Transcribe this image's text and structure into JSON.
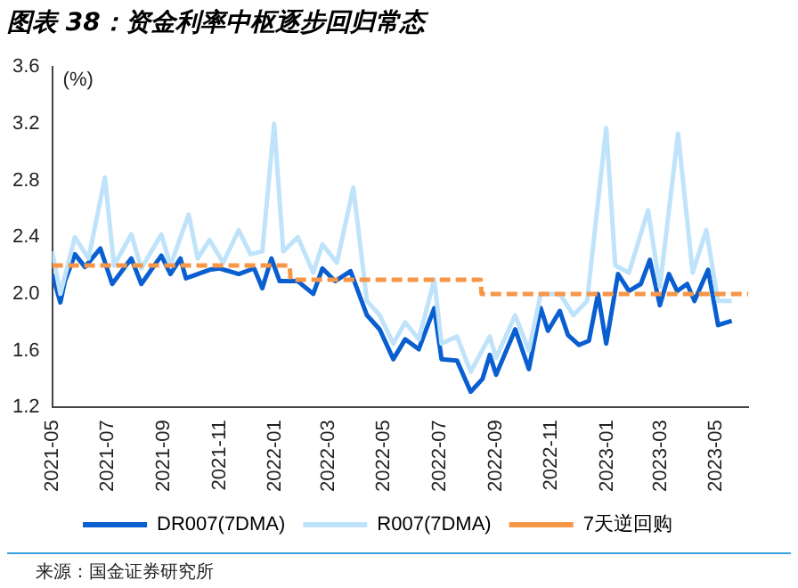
{
  "chart_data": {
    "type": "line",
    "title": "图表 38：资金利率中枢逐步回归常态",
    "ylabel": "(%)",
    "annotations": [
      "来源：国金证券研究所"
    ],
    "xlim": [
      "2021-05-01",
      "2023-06-05"
    ],
    "xticks": [
      "2021-05",
      "2021-07",
      "2021-09",
      "2021-11",
      "2022-01",
      "2022-03",
      "2022-05",
      "2022-07",
      "2022-09",
      "2022-11",
      "2023-01",
      "2023-03",
      "2023-05"
    ],
    "ylim": [
      1.2,
      3.6
    ],
    "yticks": [
      1.2,
      1.6,
      {
        "value": 2,
        "label": "2.0"
      },
      2.4,
      2.8,
      3.2,
      3.6
    ],
    "grid": false,
    "legend": "bottom",
    "marker": "none",
    "series": [
      {
        "name": "DR007(7DMA)",
        "color": "#0a5fd0",
        "line_style": "solid",
        "x": [
          "2021-05-01",
          "2021-05-10",
          "2021-05-15",
          "2021-05-26",
          "2021-06-06",
          "2021-06-23",
          "2021-07-06",
          "2021-07-27",
          "2021-08-07",
          "2021-08-29",
          "2021-09-08",
          "2021-09-19",
          "2021-09-25",
          "2021-10-21",
          "2021-11-01",
          "2021-11-22",
          "2021-12-09",
          "2021-12-18",
          "2021-12-28",
          "2022-01-06",
          "2022-01-26",
          "2022-02-12",
          "2022-02-22",
          "2022-03-08",
          "2022-03-25",
          "2022-04-12",
          "2022-04-26",
          "2022-05-11",
          "2022-05-24",
          "2022-06-08",
          "2022-06-25",
          "2022-07-03",
          "2022-07-20",
          "2022-08-04",
          "2022-08-17",
          "2022-08-25",
          "2022-09-01",
          "2022-09-22",
          "2022-10-07",
          "2022-10-20",
          "2022-10-28",
          "2022-11-10",
          "2022-11-19",
          "2022-12-01",
          "2022-12-12",
          "2022-12-22",
          "2022-12-31",
          "2023-01-13",
          "2023-01-25",
          "2023-02-07",
          "2023-02-17",
          "2023-02-28",
          "2023-03-10",
          "2023-03-19",
          "2023-03-30",
          "2023-04-07",
          "2023-04-22",
          "2023-05-03",
          "2023-05-18"
        ],
        "values": [
          2.14,
          1.94,
          2.09,
          2.28,
          2.19,
          2.32,
          2.07,
          2.25,
          2.07,
          2.27,
          2.14,
          2.25,
          2.11,
          2.17,
          2.18,
          2.14,
          2.18,
          2.04,
          2.25,
          2.09,
          2.09,
          2.0,
          2.18,
          2.09,
          2.16,
          1.85,
          1.75,
          1.54,
          1.68,
          1.61,
          1.9,
          1.54,
          1.53,
          1.31,
          1.4,
          1.57,
          1.43,
          1.75,
          1.47,
          1.9,
          1.74,
          1.88,
          1.71,
          1.64,
          1.67,
          2.0,
          1.65,
          2.14,
          2.02,
          2.07,
          2.24,
          1.92,
          2.14,
          2.02,
          2.07,
          1.95,
          2.17,
          1.78,
          1.81
        ]
      },
      {
        "name": "R007(7DMA)",
        "color": "#bfe3fb",
        "line_style": "solid",
        "x": [
          "2021-05-01",
          "2021-05-10",
          "2021-05-26",
          "2021-06-10",
          "2021-06-28",
          "2021-07-08",
          "2021-07-27",
          "2021-08-07",
          "2021-08-29",
          "2021-09-08",
          "2021-09-28",
          "2021-10-08",
          "2021-10-21",
          "2021-11-05",
          "2021-11-22",
          "2021-12-05",
          "2021-12-18",
          "2021-12-31",
          "2022-01-10",
          "2022-01-26",
          "2022-02-12",
          "2022-02-22",
          "2022-03-10",
          "2022-03-28",
          "2022-04-12",
          "2022-04-26",
          "2022-05-11",
          "2022-05-24",
          "2022-06-08",
          "2022-06-25",
          "2022-07-03",
          "2022-07-20",
          "2022-08-04",
          "2022-08-25",
          "2022-09-01",
          "2022-09-22",
          "2022-10-07",
          "2022-10-20",
          "2022-11-10",
          "2022-11-25",
          "2022-12-10",
          "2022-12-31",
          "2023-01-10",
          "2023-01-25",
          "2023-02-15",
          "2023-02-28",
          "2023-03-20",
          "2023-04-05",
          "2023-04-20",
          "2023-05-03",
          "2023-05-18"
        ],
        "values": [
          2.3,
          2.0,
          2.4,
          2.25,
          2.82,
          2.2,
          2.42,
          2.18,
          2.42,
          2.2,
          2.56,
          2.25,
          2.38,
          2.22,
          2.45,
          2.28,
          2.3,
          3.2,
          2.3,
          2.4,
          2.15,
          2.35,
          2.22,
          2.75,
          1.95,
          1.85,
          1.65,
          1.8,
          1.68,
          2.1,
          1.65,
          1.7,
          1.45,
          1.7,
          1.55,
          1.85,
          1.6,
          2.0,
          2.0,
          1.85,
          1.95,
          3.17,
          2.2,
          2.15,
          2.59,
          2.05,
          3.13,
          2.15,
          2.45,
          1.95,
          1.95
        ]
      },
      {
        "name": "7天逆回购",
        "color": "#f79646",
        "line_style": "dashed",
        "x": [
          "2021-05-01",
          "2022-01-17",
          "2022-01-18",
          "2022-08-15",
          "2022-08-16",
          "2023-06-05"
        ],
        "values": [
          2.2,
          2.2,
          2.1,
          2.1,
          2.0,
          2.0
        ]
      }
    ]
  }
}
